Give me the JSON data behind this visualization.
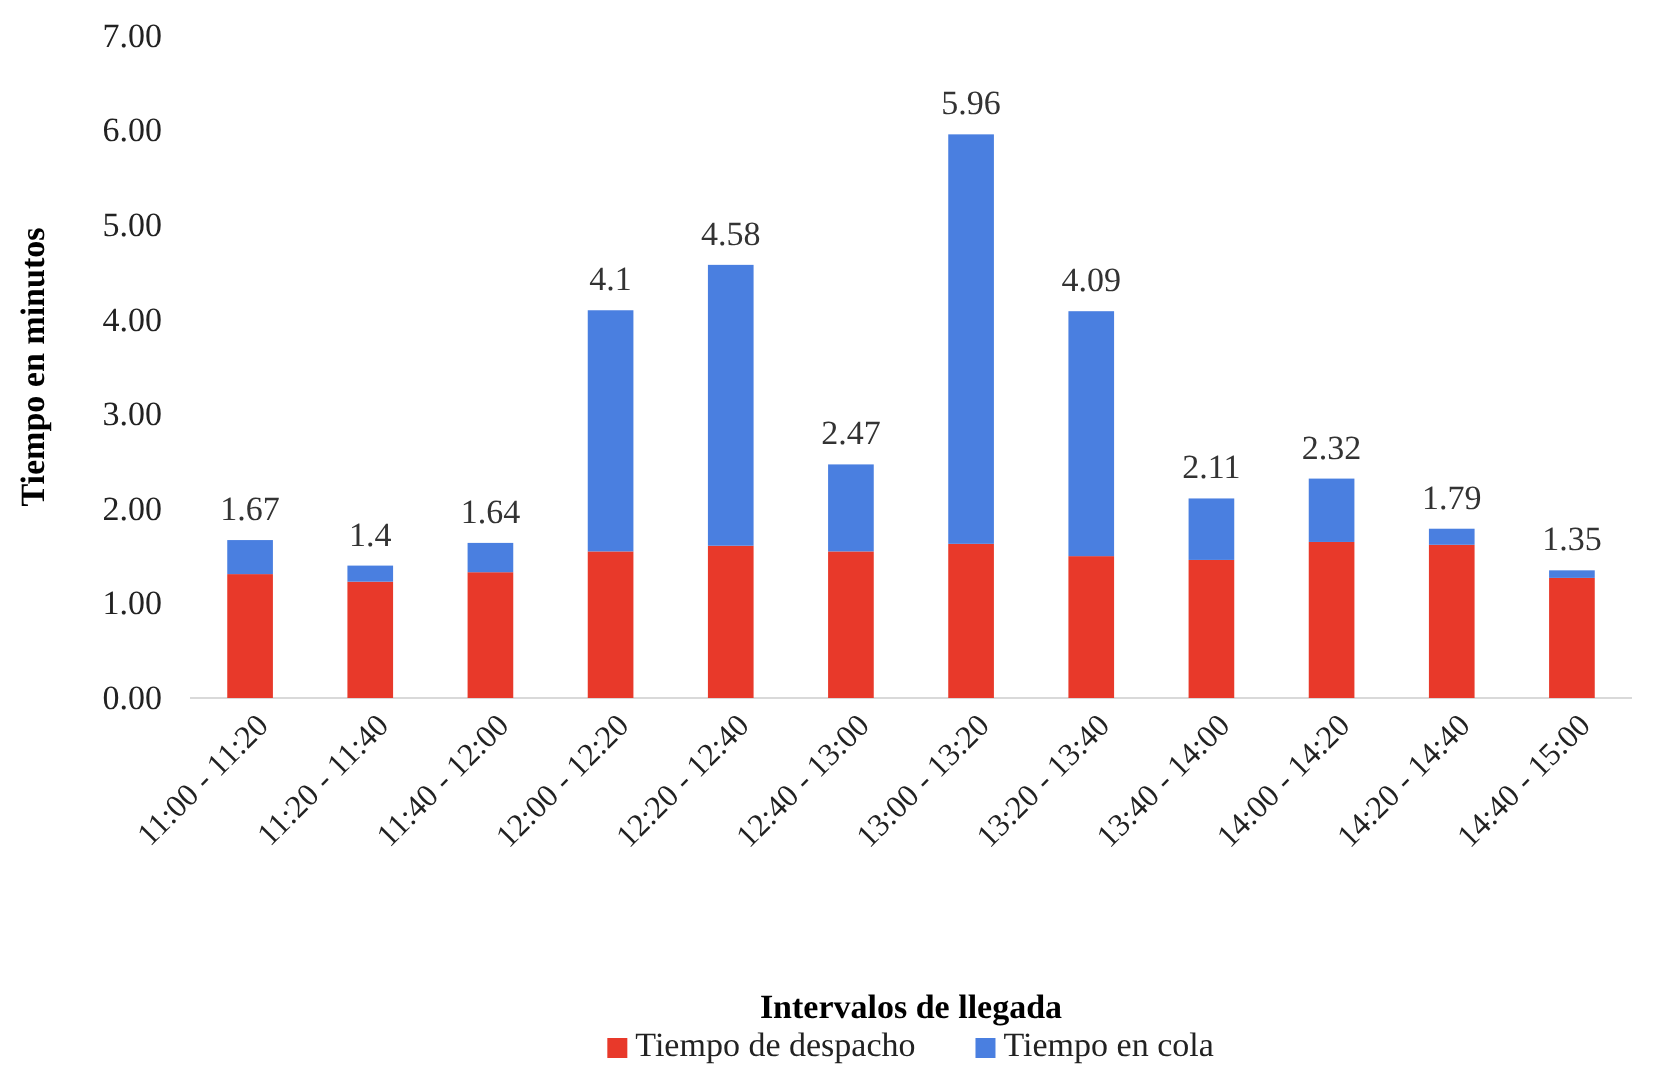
{
  "chart_data": {
    "type": "bar",
    "stacked": true,
    "xlabel": "Intervalos de llegada",
    "ylabel": "Tiempo en minutos",
    "categories": [
      "11:00 - 11:20",
      "11:20 - 11:40",
      "11:40 - 12:00",
      "12:00 - 12:20",
      "12:20 - 12:40",
      "12:40 - 13:00",
      "13:00 - 13:20",
      "13:20 - 13:40",
      "13:40 - 14:00",
      "14:00 - 14:20",
      "14:20 - 14:40",
      "14:40 - 15:00"
    ],
    "series": [
      {
        "name": "Tiempo de despacho",
        "color": "#e8392a",
        "values": [
          1.31,
          1.23,
          1.33,
          1.55,
          1.61,
          1.55,
          1.63,
          1.5,
          1.46,
          1.65,
          1.62,
          1.27
        ]
      },
      {
        "name": "Tiempo en cola",
        "color": "#4a7fe0",
        "values": [
          0.36,
          0.17,
          0.31,
          2.55,
          2.97,
          0.92,
          4.33,
          2.59,
          0.65,
          0.67,
          0.17,
          0.08
        ]
      }
    ],
    "totals": [
      "1.67",
      "1.4",
      "1.64",
      "4.1",
      "4.58",
      "2.47",
      "5.96",
      "4.09",
      "2.11",
      "2.32",
      "1.79",
      "1.35"
    ],
    "ylim": [
      0,
      7
    ],
    "yticks": [
      {
        "value": 0,
        "label": "0.00"
      },
      {
        "value": 1,
        "label": "1.00"
      },
      {
        "value": 2,
        "label": "2.00"
      },
      {
        "value": 3,
        "label": "3.00"
      },
      {
        "value": 4,
        "label": "4.00"
      },
      {
        "value": 5,
        "label": "5.00"
      },
      {
        "value": 6,
        "label": "6.00"
      },
      {
        "value": 7,
        "label": "7.00"
      }
    ],
    "grid": false,
    "legend": "bottom"
  }
}
